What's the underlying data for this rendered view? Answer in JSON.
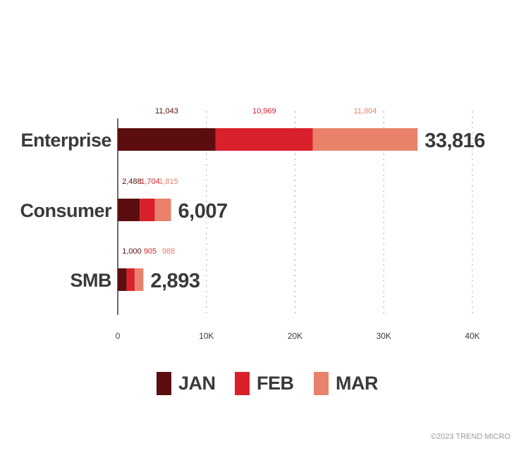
{
  "chart_data": {
    "type": "bar",
    "orientation": "horizontal",
    "stacked": true,
    "categories": [
      "Enterprise",
      "Consumer",
      "SMB"
    ],
    "series": [
      {
        "name": "JAN",
        "values": [
          11043,
          2488,
          1000
        ],
        "value_labels": [
          "11,043",
          "2,488",
          "1,000"
        ],
        "color": "#5c0d0f"
      },
      {
        "name": "FEB",
        "values": [
          10969,
          1704,
          905
        ],
        "value_labels": [
          "10,969",
          "1,704",
          "905"
        ],
        "color": "#d9212c"
      },
      {
        "name": "MAR",
        "values": [
          11804,
          1815,
          988
        ],
        "value_labels": [
          "11,804",
          "1,815",
          "988"
        ],
        "color": "#e8826a"
      }
    ],
    "totals": [
      33816,
      6007,
      2893
    ],
    "total_labels": [
      "33,816",
      "6,007",
      "2,893"
    ],
    "xlim": [
      0,
      40000
    ],
    "xticks": [
      0,
      10000,
      20000,
      30000,
      40000
    ],
    "xtick_labels": [
      "0",
      "10K",
      "20K",
      "30K",
      "40K"
    ],
    "grid": "vertical-dotted",
    "legend_position": "bottom"
  },
  "colors": {
    "text": "#3a3a3a",
    "axis": "#3a3a3a",
    "grid": "#888888"
  },
  "legend": {
    "items": [
      {
        "label": "JAN",
        "color": "#5c0d0f"
      },
      {
        "label": "FEB",
        "color": "#d9212c"
      },
      {
        "label": "MAR",
        "color": "#e8826a"
      }
    ]
  },
  "copyright": "©2023 TREND MICRO"
}
